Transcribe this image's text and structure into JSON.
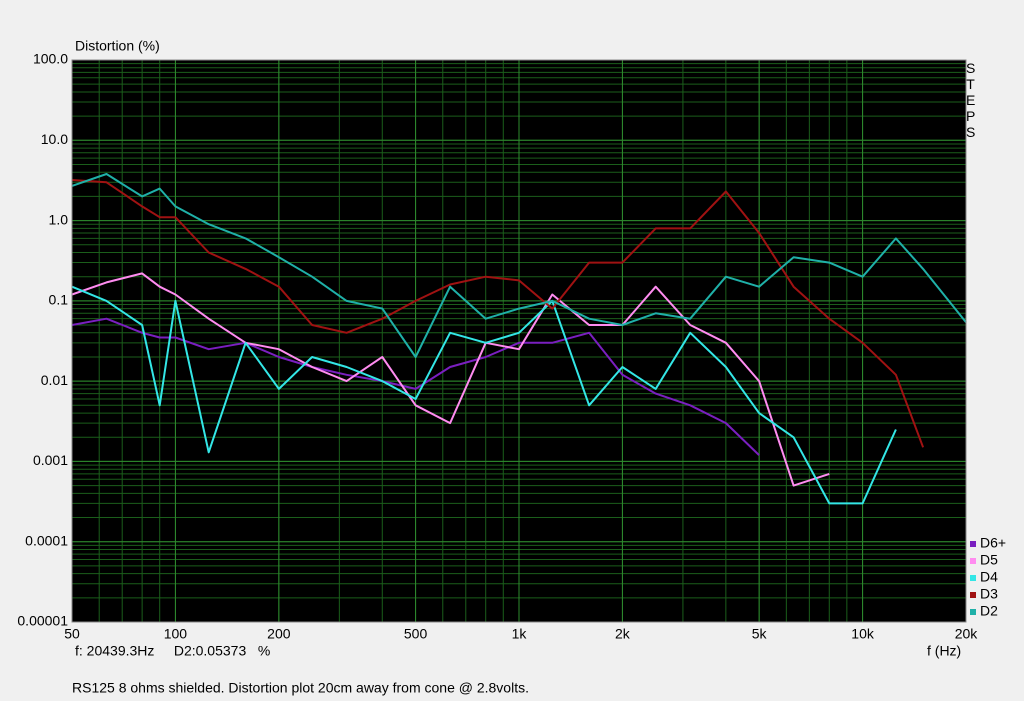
{
  "chart_data": {
    "type": "line",
    "y_label": "Distortion (%)",
    "x_label": "f (Hz)",
    "side_label": "STEPS",
    "readout": "f: 20439.3Hz     D2:0.05373   %",
    "caption": "RS125 8 ohms shielded. Distortion plot 20cm away from cone @ 2.8volts.",
    "x_log": true,
    "y_log": true,
    "grid": true,
    "minor_grid": true,
    "legend": "bottom-right",
    "background": "#000000",
    "grid_color": "#2e8b2e",
    "minor_grid_color": "#1b5e1b",
    "xlim": [
      50,
      20000
    ],
    "xticks": [
      50,
      100,
      200,
      500,
      {
        "value": 1000,
        "label": "1k"
      },
      {
        "value": 2000,
        "label": "2k"
      },
      {
        "value": 5000,
        "label": "5k"
      },
      {
        "value": 10000,
        "label": "10k"
      },
      {
        "value": 20000,
        "label": "20k"
      }
    ],
    "ylim": [
      1e-05,
      100
    ],
    "yticks": [
      1e-05,
      0.0001,
      0.001,
      0.01,
      0.1,
      {
        "value": 1,
        "label": "1.0"
      },
      {
        "value": 10,
        "label": "10.0"
      },
      {
        "value": 100,
        "label": "100.0"
      }
    ],
    "x": [
      50,
      63,
      80,
      90,
      100,
      125,
      160,
      200,
      250,
      315,
      400,
      500,
      630,
      800,
      1000,
      1250,
      1600,
      2000,
      2500,
      3150,
      4000,
      5000,
      6300,
      8000,
      10000,
      12500,
      15000,
      20000
    ],
    "series": [
      {
        "name": "D6+",
        "color": "#7a1fc0",
        "values": [
          0.05,
          0.06,
          0.04,
          0.035,
          0.035,
          0.025,
          0.03,
          0.02,
          0.015,
          0.012,
          0.01,
          0.008,
          0.015,
          0.02,
          0.03,
          0.03,
          0.04,
          0.012,
          0.007,
          0.005,
          0.003,
          0.0012,
          null,
          null,
          null,
          null,
          null,
          null
        ]
      },
      {
        "name": "D5",
        "color": "#ff8cf0",
        "values": [
          0.12,
          0.17,
          0.22,
          0.15,
          0.12,
          0.06,
          0.03,
          0.025,
          0.015,
          0.01,
          0.02,
          0.005,
          0.003,
          0.03,
          0.025,
          0.12,
          0.05,
          0.05,
          0.15,
          0.05,
          0.03,
          0.01,
          0.0005,
          0.0007,
          null,
          null,
          null,
          null
        ]
      },
      {
        "name": "D4",
        "color": "#33e6e6",
        "values": [
          0.15,
          0.1,
          0.05,
          0.005,
          0.1,
          0.0013,
          0.03,
          0.008,
          0.02,
          0.015,
          0.01,
          0.006,
          0.04,
          0.03,
          0.04,
          0.1,
          0.005,
          0.015,
          0.008,
          0.04,
          0.015,
          0.004,
          0.002,
          0.0003,
          0.0003,
          0.0025,
          null,
          null
        ]
      },
      {
        "name": "D3",
        "color": "#a01212",
        "values": [
          3.2,
          3.0,
          1.5,
          1.1,
          1.1,
          0.4,
          0.25,
          0.15,
          0.05,
          0.04,
          0.06,
          0.1,
          0.16,
          0.2,
          0.18,
          0.08,
          0.3,
          0.3,
          0.8,
          0.8,
          2.3,
          0.7,
          0.15,
          0.06,
          0.03,
          0.012,
          0.0015,
          null
        ]
      },
      {
        "name": "D2",
        "color": "#1fb0a8",
        "values": [
          2.7,
          3.8,
          2.0,
          2.5,
          1.5,
          0.9,
          0.6,
          0.35,
          0.2,
          0.1,
          0.08,
          0.02,
          0.15,
          0.06,
          0.08,
          0.1,
          0.06,
          0.05,
          0.07,
          0.06,
          0.2,
          0.15,
          0.35,
          0.3,
          0.2,
          0.6,
          0.25,
          0.054
        ]
      }
    ]
  }
}
